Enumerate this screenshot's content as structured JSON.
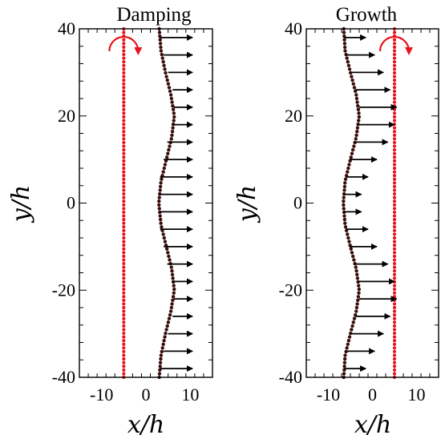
{
  "chart_data": [
    {
      "type": "scatter",
      "title": "Damping",
      "xlabel": "x/h",
      "ylabel": "y/h",
      "xlim": [
        -15,
        15
      ],
      "ylim": [
        -40,
        40
      ],
      "xticks": [
        -10,
        0,
        10
      ],
      "yticks": [
        -40,
        -20,
        0,
        20,
        40
      ],
      "grid": false,
      "rotor": {
        "x": -5,
        "ylim": [
          -40,
          40
        ],
        "color": "#e8141c",
        "rotation_arrow": "clockwise"
      },
      "wake_profile": {
        "description_visible": false,
        "x": [
          3,
          3.4,
          4.4,
          5.6,
          6.4,
          5.8,
          4.6,
          3.4,
          2.9,
          3.4,
          4.6,
          5.8,
          6.4,
          5.6,
          4.4,
          3.4,
          3
        ],
        "y": [
          40,
          35,
          30,
          25,
          20,
          15,
          10,
          5,
          0,
          -5,
          -10,
          -15,
          -20,
          -25,
          -30,
          -35,
          -40
        ],
        "color": "#3a0c0c"
      },
      "velocity_arrows": {
        "y": [
          38,
          34,
          30,
          26,
          22,
          18,
          14,
          10,
          6,
          2,
          -2,
          -6,
          -10,
          -14,
          -18,
          -22,
          -26,
          -30,
          -34,
          -38
        ],
        "x_start": [
          3.2,
          4.0,
          5.0,
          6.0,
          6.3,
          5.8,
          4.8,
          4.0,
          3.2,
          3.0,
          3.0,
          3.2,
          4.0,
          4.8,
          5.8,
          6.3,
          6.0,
          5.0,
          4.0,
          3.2
        ],
        "x_end": [
          10.5,
          10.5,
          10.5,
          10.5,
          10.5,
          10.5,
          10.5,
          10.5,
          10.5,
          10.5,
          10.5,
          10.5,
          10.5,
          10.5,
          10.5,
          10.5,
          10.5,
          10.5,
          10.5,
          10.5
        ],
        "color": "#000000"
      }
    },
    {
      "type": "scatter",
      "title": "Growth",
      "xlabel": "x/h",
      "ylabel": "y/h",
      "xlim": [
        -15,
        15
      ],
      "ylim": [
        -40,
        40
      ],
      "xticks": [
        -10,
        0,
        10
      ],
      "yticks": [
        -40,
        -20,
        0,
        20,
        40
      ],
      "grid": false,
      "rotor": {
        "x": 5,
        "ylim": [
          -40,
          40
        ],
        "color": "#e8141c",
        "rotation_arrow": "clockwise"
      },
      "wake_profile": {
        "description_visible": false,
        "x": [
          -6.5,
          -6.2,
          -5.0,
          -3.7,
          -3.0,
          -3.7,
          -5.0,
          -6.2,
          -6.6,
          -6.2,
          -5.0,
          -3.7,
          -3.0,
          -3.7,
          -5.0,
          -6.2,
          -6.5
        ],
        "y": [
          40,
          35,
          30,
          25,
          20,
          15,
          10,
          5,
          0,
          -5,
          -10,
          -15,
          -20,
          -25,
          -30,
          -35,
          -40
        ],
        "color": "#3a0c0c"
      },
      "velocity_arrows": {
        "y": [
          38,
          34,
          30,
          26,
          22,
          18,
          14,
          10,
          6,
          2,
          -2,
          -6,
          -10,
          -14,
          -18,
          -22,
          -26,
          -30,
          -34,
          -38
        ],
        "x_start": [
          -6.4,
          -5.8,
          -4.8,
          -3.9,
          -3.0,
          -3.2,
          -4.0,
          -5.2,
          -6.0,
          -6.6,
          -6.6,
          -6.0,
          -5.2,
          -4.0,
          -3.2,
          -3.0,
          -3.9,
          -4.8,
          -5.8,
          -6.4
        ],
        "x_end": [
          -1.5,
          0.5,
          2.5,
          4.0,
          5.5,
          5.0,
          3.5,
          1.0,
          -1.0,
          -2.5,
          -2.5,
          -1.0,
          1.0,
          3.5,
          5.0,
          5.5,
          4.0,
          2.5,
          0.5,
          -1.5
        ],
        "color": "#000000"
      }
    }
  ]
}
